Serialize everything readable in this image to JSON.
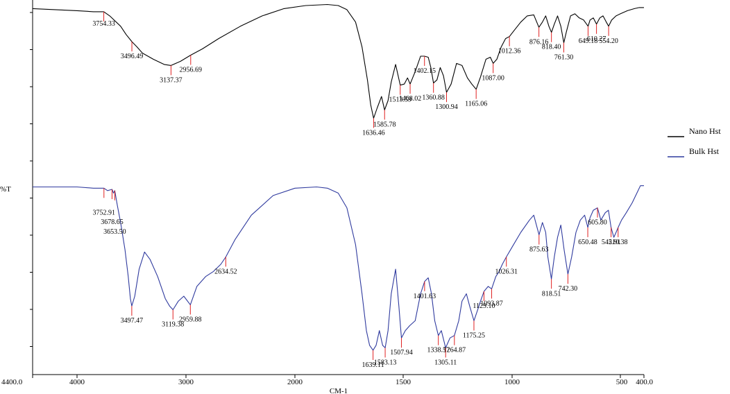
{
  "chart_data": {
    "type": "line",
    "title": "",
    "xlabel": "CM-1",
    "ylabel": "%T",
    "xlim": [
      4400.0,
      400.0
    ],
    "x_tick_labels": [
      "4400.0",
      "4000",
      "3000",
      "2000",
      "1500",
      "1000",
      "500",
      "400.0"
    ],
    "x_tick_values": [
      4400,
      4000,
      3000,
      2000,
      1500,
      1000,
      500,
      400
    ],
    "legend": {
      "position": "right"
    },
    "series": [
      {
        "name": "Nano Hst",
        "color": "#000000",
        "x": [
          4400,
          4200,
          4000,
          3850,
          3754.33,
          3700,
          3600,
          3550,
          3496.49,
          3450,
          3400,
          3300,
          3200,
          3137.37,
          3050,
          2956.69,
          2850,
          2700,
          2500,
          2300,
          2100,
          1950,
          1850,
          1800,
          1760,
          1720,
          1690,
          1665,
          1650,
          1636.46,
          1620,
          1600,
          1585.78,
          1570,
          1555,
          1535,
          1513.59,
          1495,
          1480,
          1468.02,
          1445,
          1420,
          1402.15,
          1385,
          1373,
          1360.88,
          1345,
          1330,
          1315,
          1300.94,
          1280,
          1255,
          1230,
          1205,
          1185,
          1165.06,
          1145,
          1120,
          1100,
          1087.0,
          1070,
          1050,
          1030,
          1012.36,
          990,
          960,
          930,
          900,
          876.16,
          860,
          845,
          830,
          818.4,
          805,
          790,
          775,
          761.3,
          750,
          730,
          710,
          690,
          670,
          649.18,
          640,
          625,
          610.27,
          595,
          580,
          565,
          554.2,
          540,
          520,
          500,
          470,
          440,
          420,
          400
        ],
        "y": [
          96.5,
          96.0,
          95.5,
          95.0,
          95.0,
          93.0,
          88.0,
          84.0,
          80.5,
          78.0,
          75.0,
          72.0,
          69.5,
          69.0,
          71.0,
          74.0,
          77.0,
          82.0,
          88.0,
          93.0,
          96.5,
          98.0,
          98.5,
          98.0,
          96.0,
          90.0,
          78.0,
          62.0,
          50.0,
          43.5,
          48.5,
          54.0,
          47.5,
          52.0,
          61.0,
          69.5,
          59.5,
          60.0,
          63.0,
          60.0,
          66.0,
          73.5,
          73.5,
          73.0,
          68.0,
          60.5,
          62.0,
          68.0,
          64.0,
          56.0,
          60.0,
          70.0,
          69.0,
          63.0,
          60.0,
          57.5,
          63.5,
          72.0,
          73.0,
          70.0,
          72.0,
          78.0,
          82.0,
          83.0,
          86.0,
          90.0,
          93.0,
          93.5,
          87.5,
          90.0,
          93.0,
          88.0,
          85.0,
          89.0,
          93.0,
          88.0,
          80.0,
          85.0,
          93.0,
          94.0,
          92.0,
          91.0,
          88.0,
          91.0,
          92.0,
          89.0,
          92.0,
          93.0,
          90.0,
          88.0,
          91.0,
          93.0,
          94.0,
          95.5,
          96.5,
          97.0,
          97.0
        ]
      },
      {
        "name": "Bulk Hst",
        "color": "#2f3a9e",
        "x": [
          4400,
          4200,
          4000,
          3850,
          3752.91,
          3720,
          3678.65,
          3665,
          3653.5,
          3630,
          3600,
          3560,
          3530,
          3510,
          3497.47,
          3470,
          3430,
          3380,
          3330,
          3260,
          3190,
          3150,
          3119.38,
          3070,
          3020,
          2959.88,
          2900,
          2820,
          2750,
          2680,
          2634.52,
          2550,
          2400,
          2200,
          2000,
          1900,
          1850,
          1800,
          1760,
          1720,
          1690,
          1670,
          1655,
          1639.11,
          1625,
          1610,
          1595,
          1583.13,
          1570,
          1555,
          1535,
          1520,
          1507.94,
          1490,
          1470,
          1445,
          1420,
          1401.63,
          1385,
          1370,
          1355,
          1338.57,
          1325,
          1305.11,
          1285,
          1264.87,
          1245,
          1230,
          1210,
          1195,
          1175.25,
          1160,
          1145,
          1129.1,
          1110,
          1093.87,
          1075,
          1060,
          1045,
          1026.31,
          1000,
          960,
          920,
          900,
          875.63,
          860,
          845,
          835,
          818.51,
          805,
          790,
          775,
          760,
          742.3,
          725,
          705,
          685,
          665,
          650.48,
          640,
          625,
          605.8,
          590,
          570,
          555,
          542.91,
          530,
          520,
          510.38,
          495,
          475,
          450,
          430,
          415,
          400
        ],
        "y": [
          68.5,
          68.5,
          68.5,
          68.0,
          68.0,
          67.0,
          67.5,
          66.0,
          67.0,
          61.0,
          54.0,
          43.0,
          32.0,
          23.0,
          20.0,
          24.0,
          35.0,
          42.0,
          39.0,
          32.0,
          23.0,
          20.0,
          18.5,
          22.0,
          24.0,
          20.5,
          28.0,
          32.0,
          34.0,
          37.0,
          40.0,
          47.0,
          57.0,
          65.0,
          68.0,
          68.5,
          68.0,
          66.0,
          60.0,
          45.0,
          25.0,
          10.0,
          4.0,
          2.0,
          4.0,
          10.0,
          4.0,
          3.0,
          10.0,
          25.0,
          35.0,
          20.0,
          7.0,
          10.0,
          12.0,
          14.0,
          25.0,
          30.0,
          31.5,
          25.0,
          14.0,
          8.0,
          10.0,
          3.0,
          7.0,
          8.0,
          14.0,
          22.0,
          25.0,
          20.0,
          14.0,
          18.0,
          22.0,
          26.0,
          28.0,
          27.0,
          32.0,
          34.0,
          37.0,
          40.0,
          44.0,
          50.0,
          55.0,
          57.0,
          49.0,
          54.0,
          50.0,
          40.0,
          31.0,
          40.0,
          48.0,
          53.0,
          43.0,
          33.0,
          40.0,
          50.0,
          55.0,
          57.0,
          52.0,
          56.0,
          59.0,
          60.0,
          55.0,
          58.0,
          59.0,
          52.0,
          48.0,
          50.0,
          52.0,
          55.0,
          58.0,
          62.0,
          66.0,
          69.0,
          69.0
        ]
      }
    ],
    "peak_labels": [
      {
        "series": "Nano Hst",
        "x": 3754.33,
        "text": "3754.33"
      },
      {
        "series": "Nano Hst",
        "x": 3496.49,
        "text": "3496.49"
      },
      {
        "series": "Nano Hst",
        "x": 3137.37,
        "text": "3137.37"
      },
      {
        "series": "Nano Hst",
        "x": 2956.69,
        "text": "2956.69"
      },
      {
        "series": "Nano Hst",
        "x": 1636.46,
        "text": "1636.46"
      },
      {
        "series": "Nano Hst",
        "x": 1585.78,
        "text": "1585.78"
      },
      {
        "series": "Nano Hst",
        "x": 1513.59,
        "text": "1513.59"
      },
      {
        "series": "Nano Hst",
        "x": 1468.02,
        "text": "1468.02"
      },
      {
        "series": "Nano Hst",
        "x": 1402.15,
        "text": "1402.15"
      },
      {
        "series": "Nano Hst",
        "x": 1360.88,
        "text": "1360.88"
      },
      {
        "series": "Nano Hst",
        "x": 1300.94,
        "text": "1300.94"
      },
      {
        "series": "Nano Hst",
        "x": 1165.06,
        "text": "1165.06"
      },
      {
        "series": "Nano Hst",
        "x": 1087.0,
        "text": "1087.00"
      },
      {
        "series": "Nano Hst",
        "x": 1012.36,
        "text": "1012.36"
      },
      {
        "series": "Nano Hst",
        "x": 876.16,
        "text": "876.16"
      },
      {
        "series": "Nano Hst",
        "x": 818.4,
        "text": "818.40"
      },
      {
        "series": "Nano Hst",
        "x": 761.3,
        "text": "761.30"
      },
      {
        "series": "Nano Hst",
        "x": 649.18,
        "text": "649.18"
      },
      {
        "series": "Nano Hst",
        "x": 610.27,
        "text": "610.27"
      },
      {
        "series": "Nano Hst",
        "x": 554.2,
        "text": "554.20"
      },
      {
        "series": "Bulk Hst",
        "x": 3752.91,
        "text": "3752.91"
      },
      {
        "series": "Bulk Hst",
        "x": 3678.65,
        "text": "3678.65"
      },
      {
        "series": "Bulk Hst",
        "x": 3653.5,
        "text": "3653.50"
      },
      {
        "series": "Bulk Hst",
        "x": 3497.47,
        "text": "3497.47"
      },
      {
        "series": "Bulk Hst",
        "x": 3119.38,
        "text": "3119.38"
      },
      {
        "series": "Bulk Hst",
        "x": 2959.88,
        "text": "2959.88"
      },
      {
        "series": "Bulk Hst",
        "x": 2634.52,
        "text": "2634.52"
      },
      {
        "series": "Bulk Hst",
        "x": 1639.11,
        "text": "1639.11"
      },
      {
        "series": "Bulk Hst",
        "x": 1583.13,
        "text": "1583.13"
      },
      {
        "series": "Bulk Hst",
        "x": 1507.94,
        "text": "1507.94"
      },
      {
        "series": "Bulk Hst",
        "x": 1401.63,
        "text": "1401.63"
      },
      {
        "series": "Bulk Hst",
        "x": 1338.57,
        "text": "1338.57"
      },
      {
        "series": "Bulk Hst",
        "x": 1305.11,
        "text": "1305.11"
      },
      {
        "series": "Bulk Hst",
        "x": 1264.87,
        "text": "1264.87"
      },
      {
        "series": "Bulk Hst",
        "x": 1175.25,
        "text": "1175.25"
      },
      {
        "series": "Bulk Hst",
        "x": 1129.1,
        "text": "1129.10"
      },
      {
        "series": "Bulk Hst",
        "x": 1093.87,
        "text": "1093.87"
      },
      {
        "series": "Bulk Hst",
        "x": 1026.31,
        "text": "1026.31"
      },
      {
        "series": "Bulk Hst",
        "x": 875.63,
        "text": "875.63"
      },
      {
        "series": "Bulk Hst",
        "x": 818.51,
        "text": "818.51"
      },
      {
        "series": "Bulk Hst",
        "x": 742.3,
        "text": "742.30"
      },
      {
        "series": "Bulk Hst",
        "x": 650.48,
        "text": "650.48"
      },
      {
        "series": "Bulk Hst",
        "x": 605.8,
        "text": "605.80"
      },
      {
        "series": "Bulk Hst",
        "x": 542.91,
        "text": "542.91"
      },
      {
        "series": "Bulk Hst",
        "x": 510.38,
        "text": "510.38"
      }
    ]
  },
  "peak_marker_color": "#e02020",
  "axis_color": "#000000"
}
